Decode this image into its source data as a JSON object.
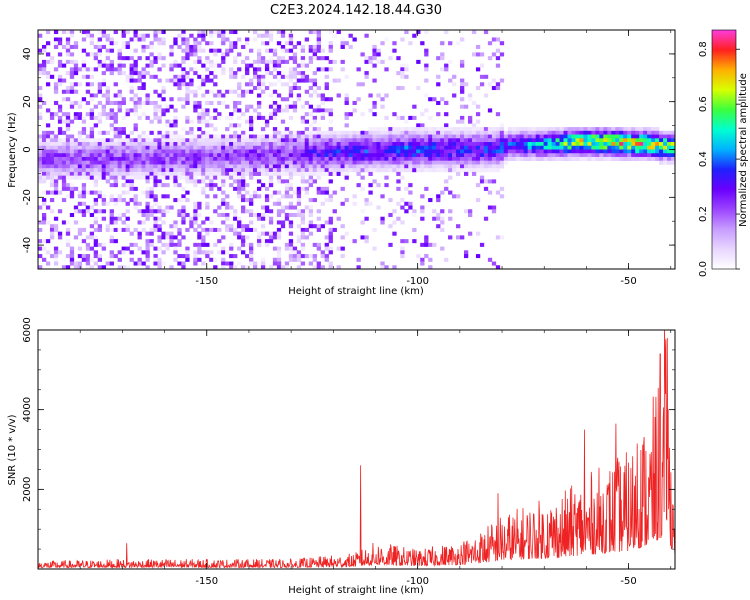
{
  "figure_title": "C2E3.2024.142.18.44.G30",
  "colors": {
    "snr_line": "#ee2222",
    "spectrogram_palette": [
      "#ffffff",
      "#e8d6ff",
      "#c79cff",
      "#9b44ff",
      "#6a00ff",
      "#1e22ff",
      "#00b3ff",
      "#00ffd0",
      "#3cff3c",
      "#d8ff00",
      "#ffb000",
      "#ff2020",
      "#ff3ce0"
    ]
  },
  "chart_data": [
    {
      "type": "heatmap",
      "xlabel": "Height of straight line (km)",
      "ylabel": "Frequency (Hz)",
      "xlim": [
        -190,
        -39
      ],
      "ylim": [
        -50,
        50
      ],
      "xticks": [
        -150,
        -100,
        -50
      ],
      "yticks": [
        -40,
        -20,
        0,
        20,
        40
      ],
      "colorbar": {
        "label": "Normalized spectral amplitude",
        "range": [
          0.0,
          0.87
        ],
        "ticks": [
          0.0,
          0.2,
          0.4,
          0.6,
          0.8
        ]
      },
      "band_profile": {
        "heights_km": [
          -190,
          -170,
          -150,
          -130,
          -118,
          -100,
          -82,
          -78,
          -70,
          -62,
          -55,
          -45,
          -39
        ],
        "center_freq_hz": [
          -4,
          -4,
          -3,
          -2,
          -1,
          0,
          0,
          2,
          2,
          3,
          3,
          2,
          1
        ],
        "peak_amplitude": [
          0.28,
          0.28,
          0.28,
          0.3,
          0.42,
          0.45,
          0.42,
          0.48,
          0.58,
          0.8,
          0.82,
          0.85,
          0.72
        ]
      },
      "background_noise_extent_km": [
        -190,
        -80
      ]
    },
    {
      "type": "line",
      "xlabel": "Height of straight line (km)",
      "ylabel": "SNR (10 * v/v)",
      "xlim": [
        -190,
        -39
      ],
      "ylim": [
        0,
        6000
      ],
      "xticks": [
        -150,
        -100,
        -50
      ],
      "yticks": [
        2000,
        4000,
        6000
      ],
      "envelope": {
        "x": [
          -190,
          -170,
          -150,
          -130,
          -115,
          -110,
          -100,
          -90,
          -85,
          -80,
          -75,
          -70,
          -65,
          -60,
          -55,
          -50,
          -45,
          -42,
          -41,
          -40,
          -39
        ],
        "y": [
          200,
          250,
          250,
          250,
          400,
          700,
          500,
          700,
          1000,
          1400,
          1600,
          1800,
          2000,
          2400,
          2700,
          3000,
          4000,
          5200,
          6000,
          3500,
          2000
        ]
      },
      "spikes": [
        {
          "x": -169,
          "y": 650
        },
        {
          "x": -113.5,
          "y": 2600
        },
        {
          "x": -81,
          "y": 1900
        },
        {
          "x": -60.5,
          "y": 3500
        },
        {
          "x": -53,
          "y": 3650
        },
        {
          "x": -48,
          "y": 3150
        },
        {
          "x": -42.5,
          "y": 5400
        },
        {
          "x": -41.5,
          "y": 6100
        },
        {
          "x": -40.8,
          "y": 5800
        }
      ]
    }
  ]
}
